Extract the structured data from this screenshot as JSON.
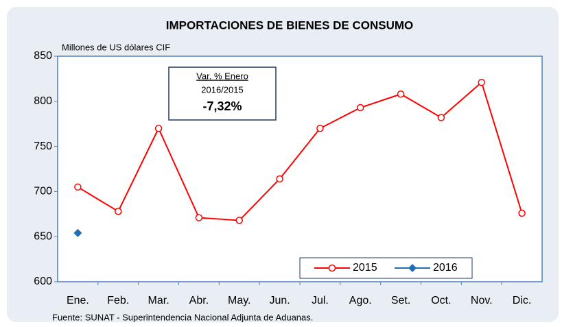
{
  "chart_data": {
    "type": "line",
    "title": "IMPORTACIONES DE BIENES DE CONSUMO",
    "y_label": "Millones de US dólares CIF",
    "source": "Fuente: SUNAT - Superintendencia Nacional Adjunta de Aduanas.",
    "annotation": {
      "title": "Var. % Enero",
      "subtitle": "2016/2015",
      "value": "-7,32%"
    },
    "categories": [
      "Ene.",
      "Feb.",
      "Mar.",
      "Abr.",
      "May.",
      "Jun.",
      "Jul.",
      "Ago.",
      "Set.",
      "Oct.",
      "Nov.",
      "Dic."
    ],
    "series": [
      {
        "name": "2015",
        "color": "#ff0000",
        "marker": "circle",
        "values": [
          705,
          678,
          770,
          671,
          668,
          714,
          770,
          793,
          808,
          782,
          821,
          676
        ]
      },
      {
        "name": "2016",
        "color": "#1f6fb5",
        "marker": "diamond",
        "values": [
          654,
          null,
          null,
          null,
          null,
          null,
          null,
          null,
          null,
          null,
          null,
          null
        ]
      }
    ],
    "ylim": [
      600,
      850
    ],
    "yticks": [
      600,
      650,
      700,
      750,
      800,
      850
    ],
    "grid": false
  }
}
